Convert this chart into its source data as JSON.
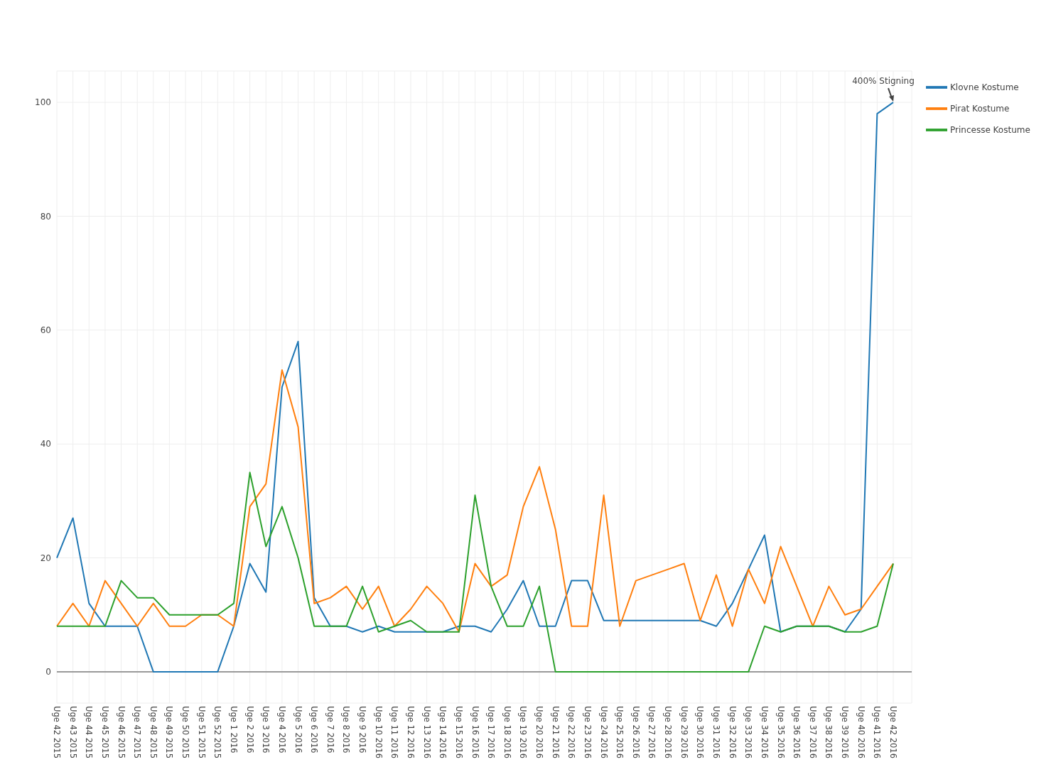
{
  "chart_data": {
    "type": "line",
    "categories": [
      "Uge 42 2015",
      "Uge 43 2015",
      "Uge 44 2015",
      "Uge 45 2015",
      "Uge 46 2015",
      "Uge 47 2015",
      "Uge 48 2015",
      "Uge 49 2015",
      "Uge 50 2015",
      "Uge 51 2015",
      "Uge 52 2015",
      "Uge 1 2016",
      "Uge 2 2016",
      "Uge 3 2016",
      "Uge 4 2016",
      "Uge 5 2016",
      "Uge 6 2016",
      "Uge 7 2016",
      "Uge 8 2016",
      "Uge 9 2016",
      "Uge 10 2016",
      "Uge 11 2016",
      "Uge 12 2016",
      "Uge 13 2016",
      "Uge 14 2016",
      "Uge 15 2016",
      "Uge 16 2016",
      "Uge 17 2016",
      "Uge 18 2016",
      "Uge 19 2016",
      "Uge 20 2016",
      "Uge 21 2016",
      "Uge 22 2016",
      "Uge 23 2016",
      "Uge 24 2016",
      "Uge 25 2016",
      "Uge 26 2016",
      "Uge 27 2016",
      "Uge 28 2016",
      "Uge 29 2016",
      "Uge 30 2016",
      "Uge 31 2016",
      "Uge 32 2016",
      "Uge 33 2016",
      "Uge 34 2016",
      "Uge 35 2016",
      "Uge 36 2016",
      "Uge 37 2016",
      "Uge 38 2016",
      "Uge 39 2016",
      "Uge 40 2016",
      "Uge 41 2016",
      "Uge 42 2016"
    ],
    "series": [
      {
        "name": "Klovne Kostume",
        "color": "#1f77b4",
        "values": [
          20,
          27,
          12,
          8,
          8,
          8,
          0,
          0,
          0,
          0,
          0,
          8,
          19,
          14,
          50,
          58,
          13,
          8,
          8,
          7,
          8,
          7,
          7,
          7,
          7,
          8,
          8,
          7,
          11,
          16,
          8,
          8,
          16,
          16,
          9,
          9,
          9,
          9,
          9,
          9,
          9,
          8,
          12,
          18,
          24,
          7,
          8,
          8,
          8,
          7,
          11,
          98,
          100
        ]
      },
      {
        "name": "Pirat Kostume",
        "color": "#ff7f0e",
        "values": [
          8,
          12,
          8,
          16,
          12,
          8,
          12,
          8,
          8,
          10,
          10,
          8,
          29,
          33,
          53,
          43,
          12,
          13,
          15,
          11,
          15,
          8,
          11,
          15,
          12,
          7,
          19,
          15,
          17,
          29,
          36,
          25,
          8,
          8,
          31,
          8,
          16,
          17,
          18,
          19,
          9,
          17,
          8,
          18,
          12,
          22,
          15,
          8,
          15,
          10,
          11,
          15,
          19
        ]
      },
      {
        "name": "Princesse Kostume",
        "color": "#2ca02c",
        "values": [
          8,
          8,
          8,
          8,
          16,
          13,
          13,
          10,
          10,
          10,
          10,
          12,
          35,
          22,
          29,
          20,
          8,
          8,
          8,
          15,
          7,
          8,
          9,
          7,
          7,
          7,
          31,
          15,
          8,
          8,
          15,
          0,
          0,
          0,
          0,
          0,
          0,
          0,
          0,
          0,
          0,
          0,
          0,
          0,
          8,
          7,
          8,
          8,
          8,
          7,
          7,
          8,
          19
        ]
      }
    ],
    "ylim": [
      -5.5,
      105.5
    ],
    "yticks": [
      0,
      20,
      40,
      60,
      80,
      100
    ],
    "grid": true,
    "legend": "top right",
    "marker": "none",
    "line_style": "solid",
    "annotations": [
      {
        "text": "400% Stigning",
        "x": "Uge 42 2016",
        "y": 100
      }
    ]
  }
}
